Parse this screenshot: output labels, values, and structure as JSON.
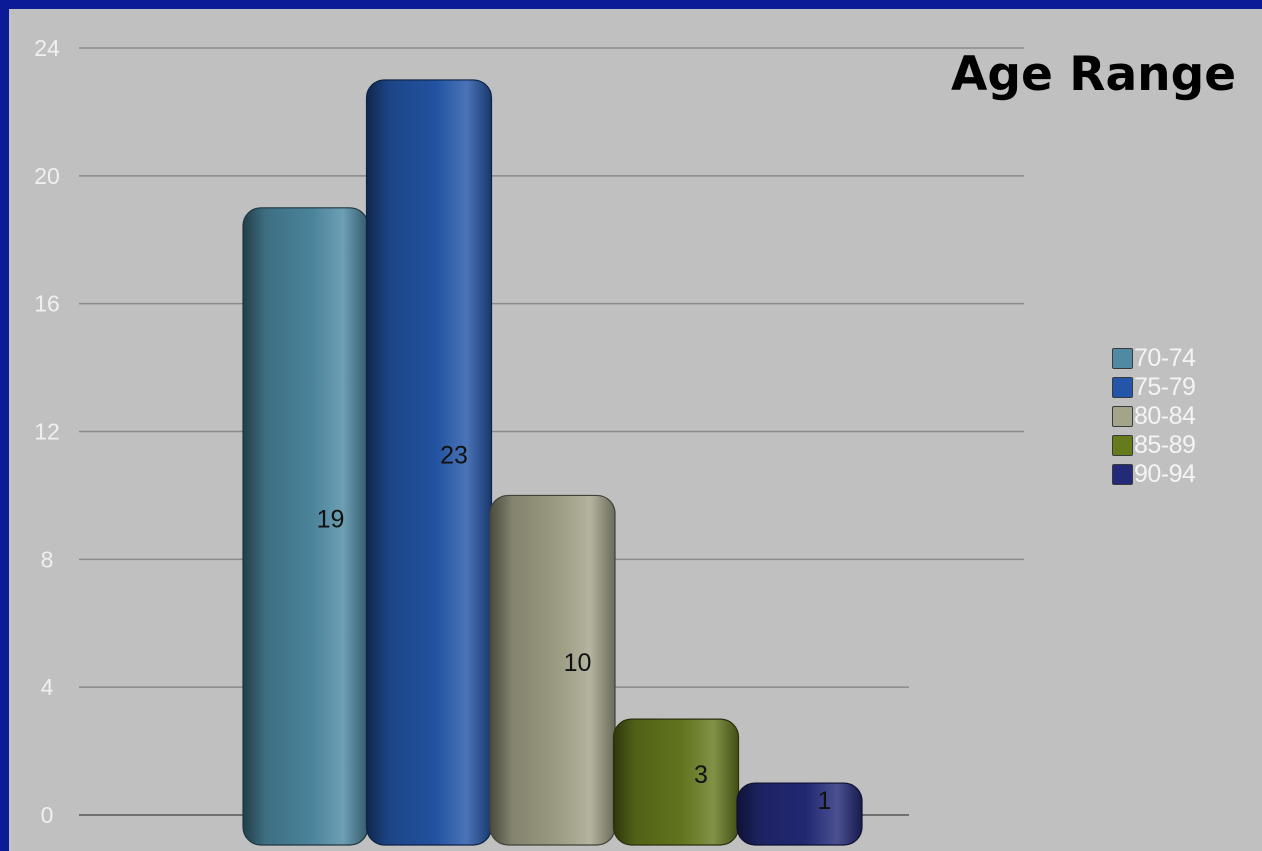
{
  "chart_data": {
    "type": "bar",
    "title": "Age Range",
    "xlabel": "",
    "ylabel": "",
    "categories": [
      "70-74",
      "75-79",
      "80-84",
      "85-89",
      "90-94"
    ],
    "values": [
      19,
      23,
      10,
      3,
      1
    ],
    "data_labels": [
      "19",
      "23",
      "10",
      "3",
      "1"
    ],
    "colors": [
      "#4e8aa3",
      "#2356a8",
      "#a4a48a",
      "#667a1e",
      "#232a78"
    ],
    "ylim": [
      0,
      24
    ],
    "yticks": [
      "0",
      "4",
      "8",
      "12",
      "16",
      "20",
      "24"
    ],
    "grid": true,
    "legend": {
      "position": "right",
      "entries": [
        "70-74",
        "75-79",
        "80-84",
        "85-89",
        "90-94"
      ]
    }
  }
}
